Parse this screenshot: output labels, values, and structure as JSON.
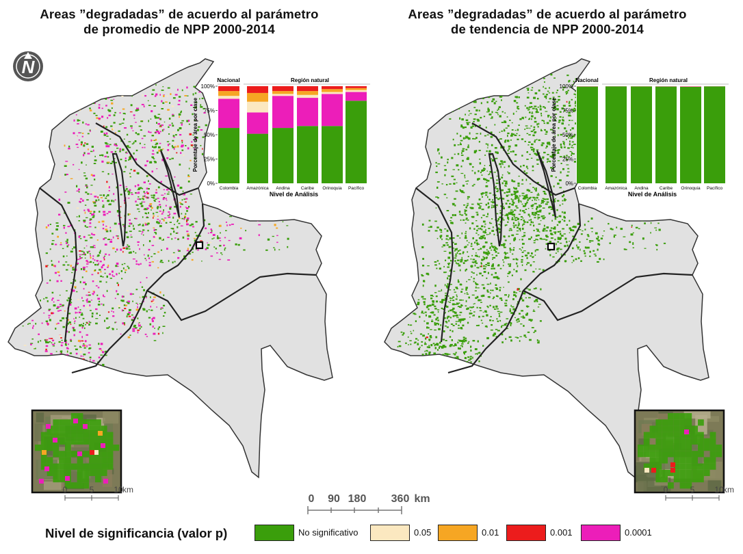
{
  "titles": {
    "left": {
      "line1": "Areas ”degradadas” de acuerdo al parámetro",
      "line2": "de promedio de NPP 2000-2014"
    },
    "right": {
      "line1": "Areas ”degradadas” de acuerdo al parámetro",
      "line2": "de tendencia de NPP 2000-2014"
    }
  },
  "north_arrow": {
    "letter": "N",
    "icon": "north-arrow-icon"
  },
  "colors": {
    "no_significativo": "#3a9e0b",
    "p005": "#fbe8c0",
    "p001": "#f6a623",
    "p0001": "#ec1c1c",
    "p00001": "#ec1eb9",
    "map_land": "#e1e1e1",
    "border": "#333333"
  },
  "chart_data": [
    {
      "type": "bar",
      "stacked": true,
      "panel": "promedio",
      "xlabel": "Nivel de Análisis",
      "ylabel": "Porcentaje de área por clase",
      "group_labels": {
        "nacional": "Nacional",
        "region": "Región natural"
      },
      "y_ticks": [
        "0%",
        "25%",
        "50%",
        "75%",
        "100%"
      ],
      "ylim": [
        0,
        100
      ],
      "categories": [
        "Colombia",
        "Amazónica",
        "Andina",
        "Caribe",
        "Orinoquia",
        "Pacífico"
      ],
      "series": [
        {
          "name": "No significativo",
          "values": [
            57,
            51,
            57,
            59,
            59,
            85
          ]
        },
        {
          "name": "0.0001",
          "values": [
            30,
            22,
            33,
            29,
            33,
            9
          ]
        },
        {
          "name": "0.05",
          "values": [
            3,
            11,
            2,
            3,
            2,
            2
          ]
        },
        {
          "name": "0.01",
          "values": [
            5,
            9,
            3,
            4,
            3,
            2
          ]
        },
        {
          "name": "0.001",
          "values": [
            5,
            7,
            5,
            5,
            3,
            2
          ]
        }
      ]
    },
    {
      "type": "bar",
      "stacked": true,
      "panel": "tendencia",
      "xlabel": "Nivel de Análisis",
      "ylabel": "Porcentaje de área por clase",
      "group_labels": {
        "nacional": "Nacional",
        "region": "Región natural"
      },
      "y_ticks": [
        "0%",
        "25%",
        "50%",
        "75%",
        "100%"
      ],
      "ylim": [
        0,
        100
      ],
      "categories": [
        "Colombia",
        "Amazónica",
        "Andina",
        "Caribe",
        "Orinoquia",
        "Pacífico"
      ],
      "series": [
        {
          "name": "No significativo",
          "values": [
            99.6,
            99.8,
            99.7,
            99.6,
            99.3,
            99.8
          ]
        },
        {
          "name": "0.0001",
          "values": [
            0.2,
            0.1,
            0.1,
            0.2,
            0.3,
            0.1
          ]
        },
        {
          "name": "0.05",
          "values": [
            0.1,
            0.05,
            0.1,
            0.1,
            0.2,
            0.05
          ]
        },
        {
          "name": "0.01",
          "values": [
            0.05,
            0.03,
            0.05,
            0.05,
            0.1,
            0.03
          ]
        },
        {
          "name": "0.001",
          "values": [
            0.05,
            0.02,
            0.05,
            0.05,
            0.1,
            0.02
          ]
        }
      ]
    }
  ],
  "scale_bar": {
    "labels": [
      "0",
      "90",
      "180",
      "360"
    ],
    "unit": "km"
  },
  "inset_scale": {
    "labels": [
      "0",
      "5",
      "10"
    ],
    "unit": "km"
  },
  "legend": {
    "title": "Nivel de significancia (valor p)",
    "items": [
      {
        "label": "No significativo",
        "color": "#3a9e0b"
      },
      {
        "label": "0.05",
        "color": "#fbe8c0"
      },
      {
        "label": "0.01",
        "color": "#f6a623"
      },
      {
        "label": "0.001",
        "color": "#ec1c1c"
      },
      {
        "label": "0.0001",
        "color": "#ec1eb9"
      }
    ]
  }
}
